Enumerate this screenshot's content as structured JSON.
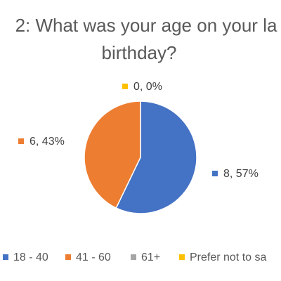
{
  "chart_data": {
    "type": "pie",
    "title_lines": [
      "2: What was your age on your la",
      "birthday?"
    ],
    "categories": [
      "18 - 40",
      "41 - 60",
      "61+",
      "Prefer not to sa"
    ],
    "values": [
      8,
      6,
      0,
      0
    ],
    "percentages": [
      "57%",
      "43%",
      "0%",
      "0%"
    ],
    "data_labels": [
      "8, 57%",
      "6, 43%",
      "",
      "0, 0%"
    ],
    "colors": [
      "#4472C4",
      "#ED7D31",
      "#A5A5A5",
      "#FFC000"
    ],
    "legend_position": "bottom"
  }
}
